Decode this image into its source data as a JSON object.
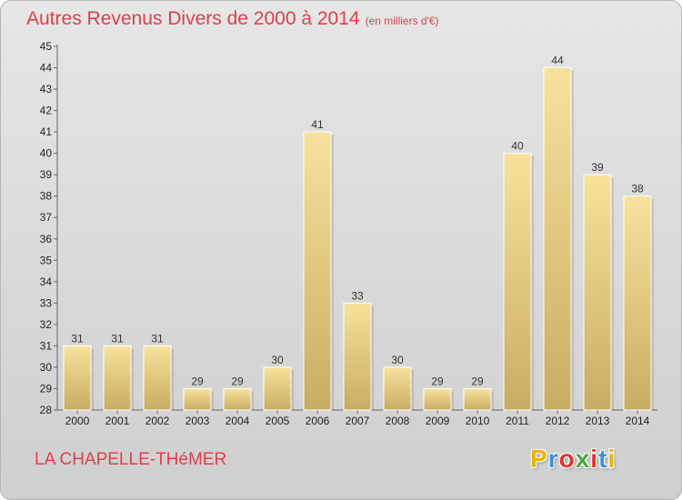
{
  "header": {
    "title": "Autres Revenus Divers de 2000 à 2014",
    "unit": "(en milliers d'€)"
  },
  "footer": {
    "location": "LA CHAPELLE-THéMER",
    "logo_letters": [
      "P",
      "r",
      "o",
      "x",
      "i",
      "t",
      "i"
    ]
  },
  "colors": {
    "title": "#e0404a",
    "bar_light": "#f7e29c",
    "bar_dark": "#c8ac63",
    "logo": [
      "#f0b000",
      "#3e8fd1",
      "#e2332f",
      "#4aa83e",
      "#e2332f",
      "#3e8fd1",
      "#f0b000"
    ]
  },
  "chart_data": {
    "type": "bar",
    "title": "Autres Revenus Divers de 2000 à 2014",
    "unit": "(en milliers d'€)",
    "categories": [
      "2000",
      "2001",
      "2002",
      "2003",
      "2004",
      "2005",
      "2006",
      "2007",
      "2008",
      "2009",
      "2010",
      "2011",
      "2012",
      "2013",
      "2014"
    ],
    "values": [
      31,
      31,
      31,
      29,
      29,
      30,
      41,
      33,
      30,
      29,
      29,
      40,
      44,
      39,
      38
    ],
    "ylim": [
      28,
      45
    ],
    "yticks": [
      28,
      29,
      30,
      31,
      32,
      33,
      34,
      35,
      36,
      37,
      38,
      39,
      40,
      41,
      42,
      43,
      44,
      45
    ],
    "grid": false,
    "legend": "none"
  }
}
